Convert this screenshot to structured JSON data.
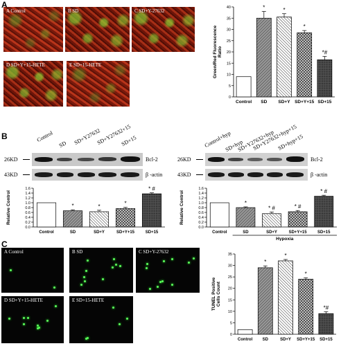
{
  "panels": {
    "a": "A",
    "b": "B",
    "c": "C"
  },
  "panel_a": {
    "images": [
      "A Control",
      "B  SD",
      "C  SD+Y-27632",
      "D SD+Y+15-HETE",
      "E  SD+15-HETE"
    ]
  },
  "panel_b": {
    "blot_left": {
      "lanes": [
        "Control",
        "SD",
        "SD+Y27632",
        "SD+Y27632+15",
        "SD+15"
      ],
      "kd_top": "26KD",
      "kd_bottom": "43KD",
      "protein_top": "Bcl-2",
      "protein_bottom": "β -actin"
    },
    "blot_right": {
      "lanes": [
        "Control+hyp",
        "SD+hyp",
        "SD+Y27632+hyp",
        "SD+Y27632+hyp+15",
        "SD+hyp+15"
      ],
      "kd_top": "26KD",
      "kd_bottom": "43KD",
      "protein_top": "Bcl-2",
      "protein_bottom": "β -actin"
    }
  },
  "panel_c": {
    "images": [
      "A  Control",
      "B  SD",
      "C  SD+Y-27632",
      "D  SD+Y+15-HETE",
      "E  SD+15-HETE"
    ]
  },
  "chart_data": [
    {
      "type": "bar",
      "ylabel": "Green/Red Fluorescence Ratio",
      "categories": [
        "Control",
        "SD",
        "SD+Y",
        "SD+Y+15",
        "SD+15"
      ],
      "values": [
        9,
        35,
        35.5,
        28.5,
        16.5
      ],
      "errors": [
        0,
        3,
        1.5,
        1,
        1.5
      ],
      "annotations": [
        "",
        "*",
        "*",
        "*",
        "*#"
      ],
      "ylim": [
        0,
        40
      ],
      "yticks": [
        0,
        5,
        10,
        15,
        20,
        25,
        30,
        35,
        40
      ]
    },
    {
      "type": "bar",
      "ylabel": "Relative Control",
      "categories": [
        "Control",
        "SD",
        "SD+Y",
        "SD+Y+15",
        "SD+15"
      ],
      "values": [
        1.0,
        0.67,
        0.63,
        0.76,
        1.37
      ],
      "errors": [
        0,
        0.04,
        0.06,
        0.05,
        0.04
      ],
      "annotations": [
        "",
        "*",
        "*",
        "*",
        "* #"
      ],
      "ylim": [
        0,
        1.6
      ],
      "yticks": [
        0,
        0.2,
        0.4,
        0.6,
        0.8,
        1.0,
        1.2,
        1.4,
        1.6
      ]
    },
    {
      "type": "bar",
      "ylabel": "Relative Control",
      "xgroup_label": "Hypoxia",
      "categories": [
        "Control",
        "SD",
        "SD+Y",
        "SD+Y+15",
        "SD+15"
      ],
      "values": [
        1.0,
        0.8,
        0.55,
        0.63,
        1.27
      ],
      "errors": [
        0,
        0.03,
        0.07,
        0.05,
        0.04
      ],
      "annotations": [
        "",
        "*",
        "* #",
        "* #",
        "* #"
      ],
      "ylim": [
        0,
        1.6
      ],
      "yticks": [
        0,
        0.2,
        0.4,
        0.6,
        0.8,
        1.0,
        1.2,
        1.4,
        1.6
      ]
    },
    {
      "type": "bar",
      "ylabel": "TUNEL Positive Cells Count",
      "categories": [
        "Control",
        "SD",
        "SD+Y",
        "SD+Y+15",
        "SD+15"
      ],
      "values": [
        2,
        29,
        32,
        24,
        9
      ],
      "errors": [
        0,
        0.8,
        0.6,
        0.6,
        0.8
      ],
      "annotations": [
        "",
        "*",
        "*",
        "*",
        "*#"
      ],
      "ylim": [
        0,
        35
      ],
      "yticks": [
        0,
        5,
        10,
        15,
        20,
        25,
        30,
        35
      ]
    }
  ]
}
